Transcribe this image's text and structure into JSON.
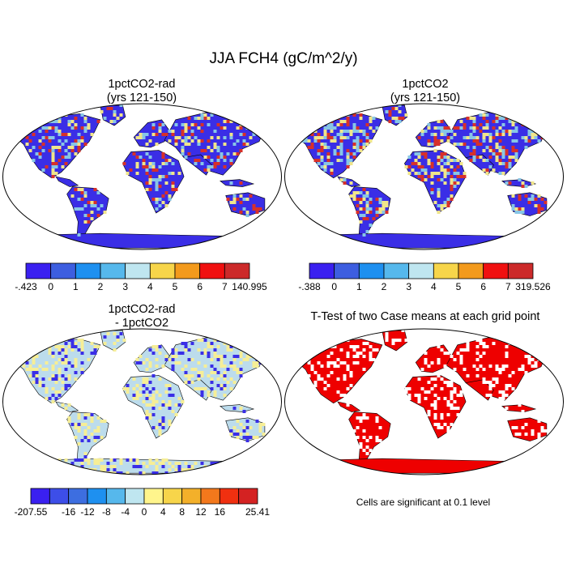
{
  "figure_title": "JJA FCH4 (gC/m^2/y)",
  "panels": [
    {
      "title_line1": "1pctCO2-rad",
      "title_line2": "(yrs 121-150)",
      "land_base_color": "#3a2ee6",
      "hotspot_colors": [
        "#d7302a",
        "#f0e58a",
        "#87c6e6"
      ],
      "hotspot_density": 0.3
    },
    {
      "title_line1": "1pctCO2",
      "title_line2": "(yrs 121-150)",
      "land_base_color": "#3a2ee6",
      "hotspot_colors": [
        "#d7302a",
        "#f0e58a",
        "#87c6e6"
      ],
      "hotspot_density": 0.45
    },
    {
      "title_line1": "1pctCO2-rad",
      "title_line2": "- 1pctCO2",
      "land_base_color": "#bcdcec",
      "hotspot_colors": [
        "#f6ee96",
        "#f6ee96",
        "#3a2ee6"
      ],
      "hotspot_density": 0.4
    },
    {
      "title": "T-Test of two Case means at each grid point",
      "land_base_color": "#ee0000",
      "hotspot_colors": [
        "#ffffff"
      ],
      "hotspot_density": 0.25
    }
  ],
  "colorbars": [
    {
      "colors": [
        "#3a20f0",
        "#3d5ee0",
        "#1e90f0",
        "#56b8ec",
        "#bfe6f0",
        "#f7d54a",
        "#f39a1c",
        "#f01010",
        "#cc2a2a"
      ],
      "labels": [
        "-.423",
        "0",
        "1",
        "2",
        "3",
        "4",
        "5",
        "6",
        "7",
        "140.995"
      ]
    },
    {
      "colors": [
        "#3a20f0",
        "#3d5ee0",
        "#1e90f0",
        "#56b8ec",
        "#bfe6f0",
        "#f7d54a",
        "#f39a1c",
        "#f01010",
        "#cc2a2a"
      ],
      "labels": [
        "-.388",
        "0",
        "1",
        "2",
        "3",
        "4",
        "5",
        "6",
        "7",
        "319.526"
      ]
    },
    {
      "colors": [
        "#3a20f0",
        "#3d4ee8",
        "#3d6ee0",
        "#1e90f0",
        "#56b8ec",
        "#bfe6f0",
        "#fff58c",
        "#f7d54a",
        "#f3b02a",
        "#f3781c",
        "#f03010",
        "#d42222"
      ],
      "labels": [
        "-207.55",
        "",
        "-16",
        "-12",
        "-8",
        "-4",
        "0",
        "4",
        "8",
        "12",
        "16",
        "",
        "25.41"
      ]
    }
  ],
  "significance_note": "Cells are significant at 0.1 level"
}
